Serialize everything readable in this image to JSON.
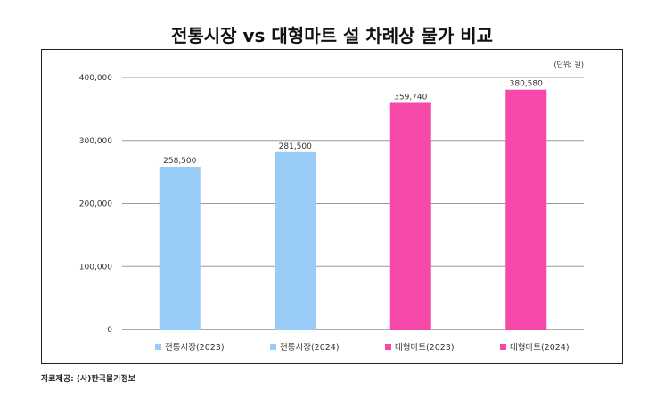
{
  "chart_data": {
    "type": "bar",
    "title": "전통시장 vs 대형마트 설 차례상 물가 비교",
    "unit_note": "(단위: 원)",
    "categories": [
      "전통시장(2023)",
      "전통시장(2024)",
      "대형마트(2023)",
      "대형마트(2024)"
    ],
    "values": [
      258500,
      281500,
      359740,
      380580
    ],
    "value_labels": [
      "258,500",
      "281,500",
      "359,740",
      "380,580"
    ],
    "colors": [
      "#99ccf7",
      "#99ccf7",
      "#f548a8",
      "#f548a8"
    ],
    "xlabel": "",
    "ylabel": "",
    "ylim": [
      0,
      400000
    ],
    "yticks": [
      0,
      100000,
      200000,
      300000,
      400000
    ],
    "ytick_labels": [
      "0",
      "100,000",
      "200,000",
      "300,000",
      "400,000"
    ],
    "grid": true,
    "legend": "bottom"
  },
  "source": "자료제공: (사)한국물가정보"
}
